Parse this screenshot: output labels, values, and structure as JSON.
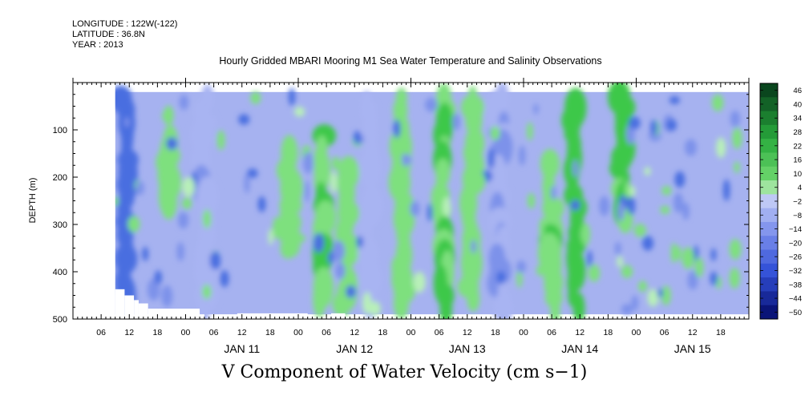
{
  "meta": {
    "longitude": "LONGITUDE : 122W(-122)",
    "latitude": "LATITUDE : 36.8N",
    "year": "YEAR : 2013"
  },
  "chart_data": {
    "type": "heatmap",
    "title": "Hourly Gridded MBARI Mooring M1 Sea Water Temperature and Salinity Observations",
    "xlabel": "V Component of Water Velocity (cm s−1)",
    "ylabel": "DEPTH (m)",
    "x_start": "JAN 10 00:00",
    "x_end": "JAN 16 00:00",
    "data_start": "JAN 10 09:00",
    "data_end": "JAN 15 23:00",
    "ylim": [
      500,
      0
    ],
    "data_depth_range": [
      20,
      490
    ],
    "y_ticks": [
      "100",
      "200",
      "300",
      "400",
      "500"
    ],
    "y_tick_values": [
      100,
      200,
      300,
      400,
      500
    ],
    "hour_ticks": [
      "06",
      "12",
      "18",
      "00",
      "06",
      "12",
      "18",
      "00",
      "06",
      "12",
      "18",
      "00",
      "06",
      "12",
      "18",
      "00",
      "06",
      "12",
      "18",
      "00",
      "06",
      "12",
      "18"
    ],
    "hour_tick_values": [
      6,
      12,
      18,
      24,
      30,
      36,
      42,
      48,
      54,
      60,
      66,
      72,
      78,
      84,
      90,
      96,
      102,
      108,
      114,
      120,
      126,
      132,
      138
    ],
    "day_labels": [
      "JAN 11",
      "JAN 12",
      "JAN 13",
      "JAN 14",
      "JAN 15"
    ],
    "day_label_hours": [
      36,
      60,
      84,
      108,
      132
    ],
    "colorbar_labels": [
      "46",
      "40",
      "34",
      "28",
      "22",
      "16",
      "10",
      "4",
      "−2",
      "−8",
      "−14",
      "−20",
      "−26",
      "−32",
      "−38",
      "−44",
      "−50"
    ],
    "colorbar_values": [
      46,
      40,
      34,
      28,
      22,
      16,
      10,
      4,
      -2,
      -8,
      -14,
      -20,
      -26,
      -32,
      -38,
      -44,
      -50
    ],
    "colors": {
      "strong_negative": "#0b1a8c",
      "negative": "#4a6ee0",
      "weak_negative": "#a8b4f2",
      "weak_positive": "#b8f0b8",
      "positive": "#3ec84a",
      "strong_positive": "#0d5c1c"
    },
    "bands": [
      {
        "day": 1,
        "hour": 11,
        "depth_top": 20,
        "depth_bottom": 490,
        "value": -30
      },
      {
        "day": 1,
        "hour": 20,
        "depth_top": 120,
        "depth_bottom": 260,
        "value": 8
      },
      {
        "day": 2,
        "hour": 4,
        "depth_top": 20,
        "depth_bottom": 490,
        "value": -6
      },
      {
        "day": 2,
        "hour": 22,
        "depth_top": 140,
        "depth_bottom": 360,
        "value": 8
      },
      {
        "day": 3,
        "hour": 5,
        "depth_top": 100,
        "depth_bottom": 470,
        "value": 14
      },
      {
        "day": 3,
        "hour": 10,
        "depth_top": 180,
        "depth_bottom": 480,
        "value": 10
      },
      {
        "day": 3,
        "hour": 15,
        "depth_top": 40,
        "depth_bottom": 480,
        "value": -4
      },
      {
        "day": 3,
        "hour": 22,
        "depth_top": 20,
        "depth_bottom": 480,
        "value": 12
      },
      {
        "day": 4,
        "hour": 7,
        "depth_top": 20,
        "depth_bottom": 490,
        "value": 16
      },
      {
        "day": 4,
        "hour": 13,
        "depth_top": 40,
        "depth_bottom": 470,
        "value": 10
      },
      {
        "day": 4,
        "hour": 19,
        "depth_top": 20,
        "depth_bottom": 490,
        "value": -8
      },
      {
        "day": 5,
        "hour": 6,
        "depth_top": 160,
        "depth_bottom": 490,
        "value": 14
      },
      {
        "day": 5,
        "hour": 11,
        "depth_top": 40,
        "depth_bottom": 490,
        "value": 20
      },
      {
        "day": 5,
        "hour": 21,
        "depth_top": 20,
        "depth_bottom": 300,
        "value": 18
      }
    ]
  }
}
